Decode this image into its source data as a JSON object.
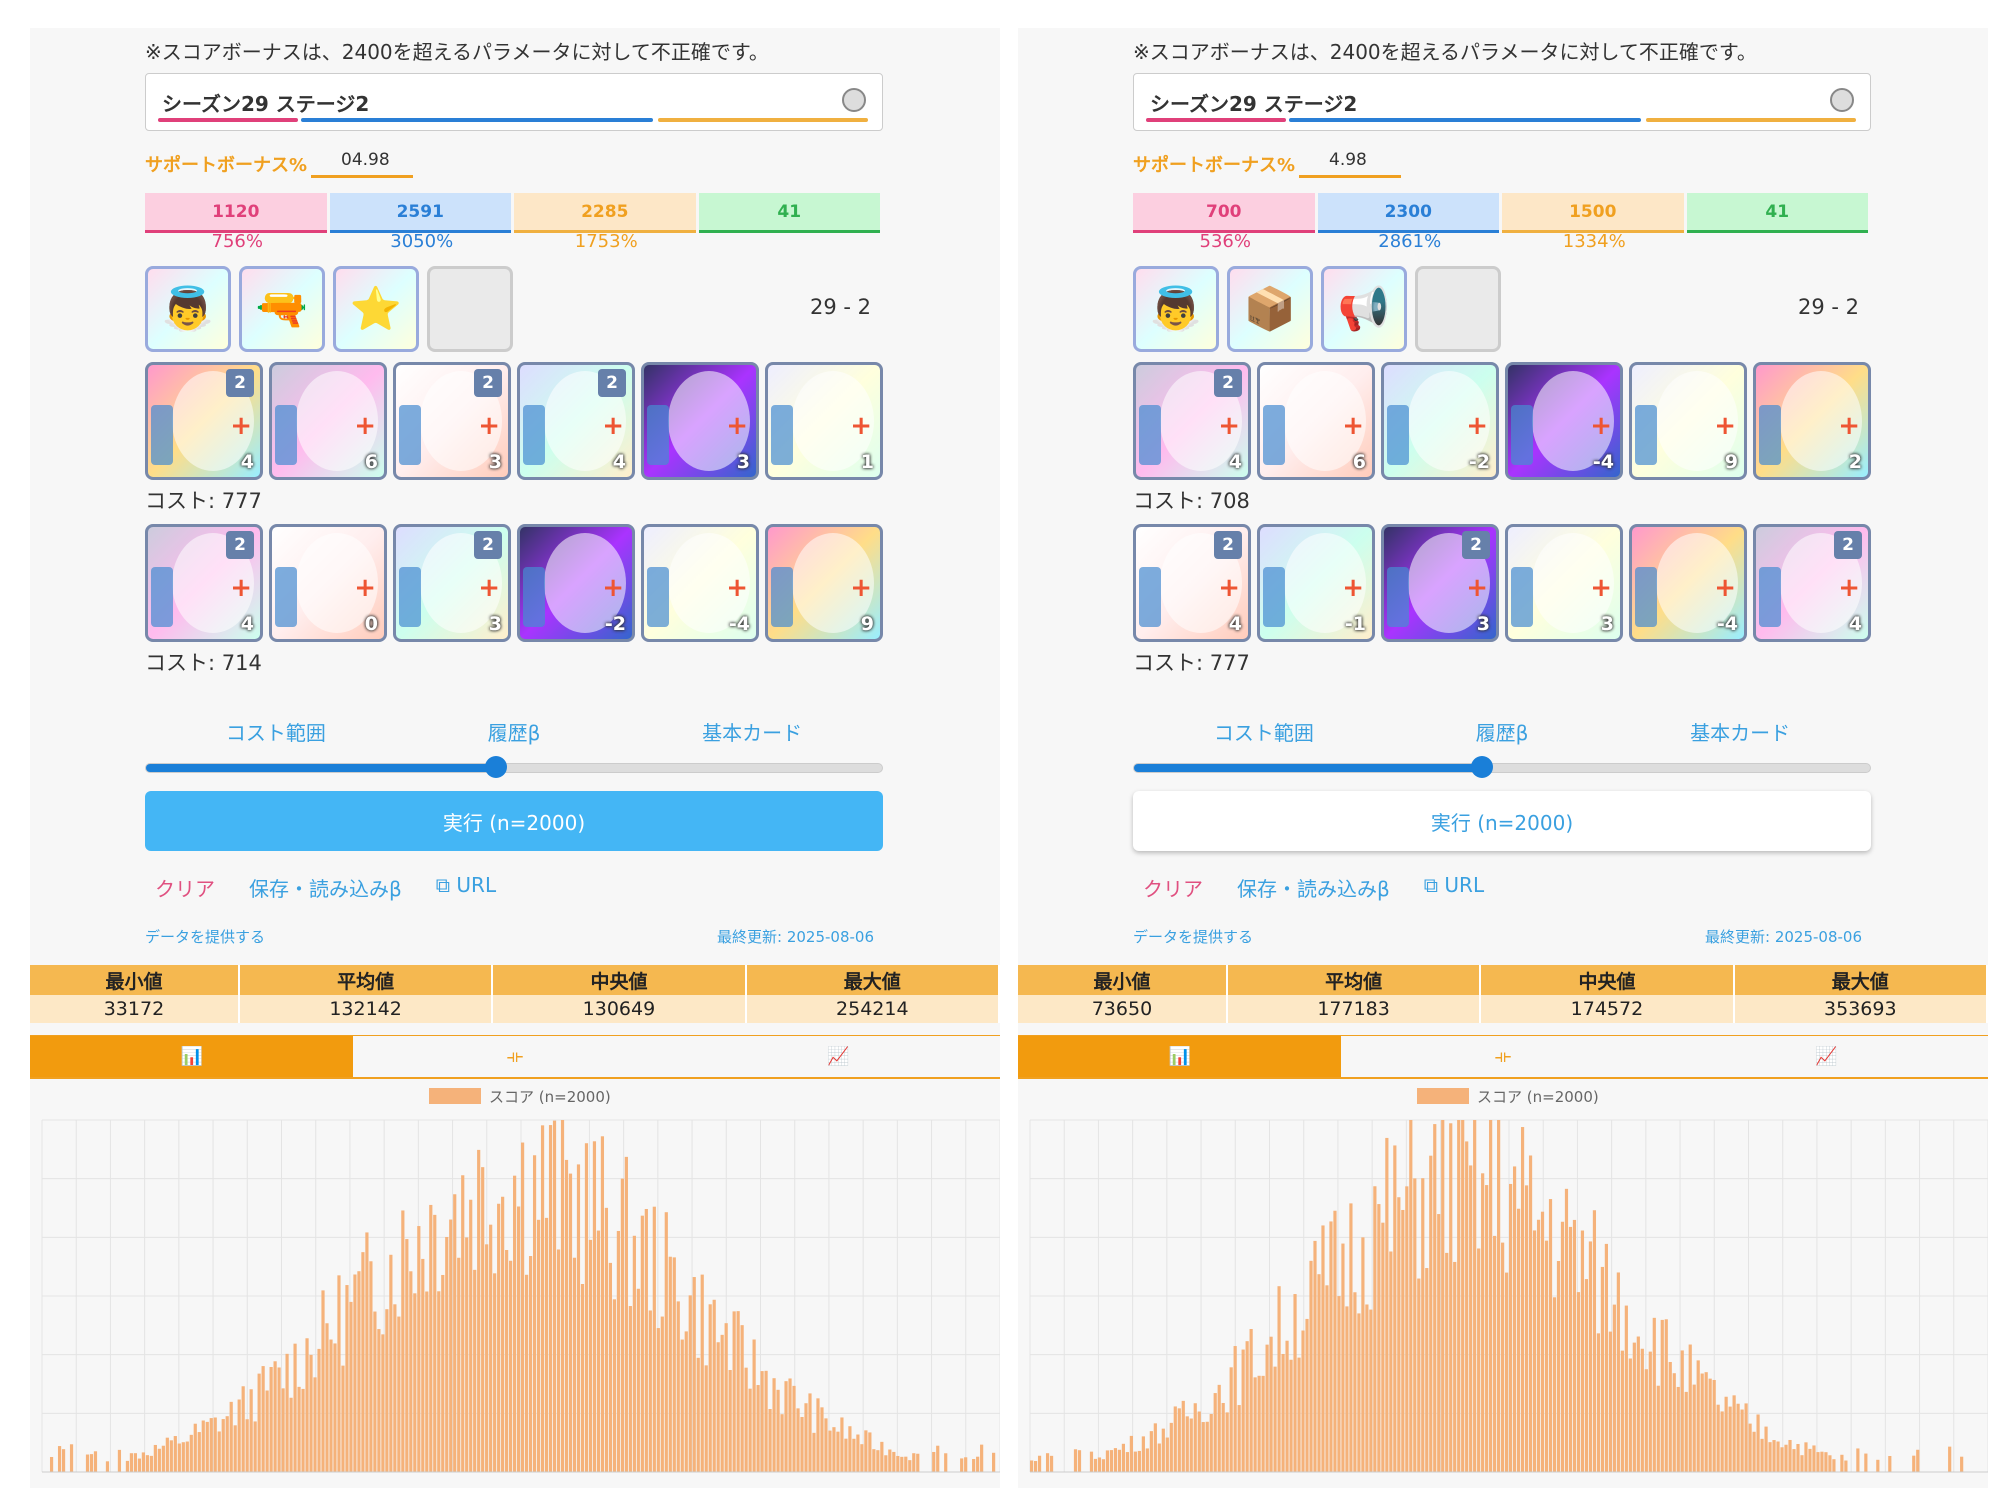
{
  "panels": [
    {
      "note": "※スコアボーナスは、2400を超えるパラメータに対して不正確です。",
      "stage": "シーズン29 ステージ2",
      "support_label": "サポートボーナス%",
      "support_value": "04.98",
      "params": [
        {
          "value": "1120",
          "pct": "756%",
          "bg": "#fccfe0",
          "fg": "#e0407a",
          "line": "#e0407a"
        },
        {
          "value": "2591",
          "pct": "3050%",
          "bg": "#cce2fb",
          "fg": "#2a7fd6",
          "line": "#2a7fd6"
        },
        {
          "value": "2285",
          "pct": "1753%",
          "bg": "#fde7c7",
          "fg": "#f0a020",
          "line": "#f0b040"
        },
        {
          "value": "41",
          "pct": "",
          "bg": "#c7f7d2",
          "fg": "#30b050",
          "line": "#30b050"
        }
      ],
      "accessories": [
        {
          "icon": "👼"
        },
        {
          "icon": "🔫"
        },
        {
          "icon": "⭐"
        },
        {
          "icon": ""
        }
      ],
      "stage_code": "29 - 2",
      "deck1": [
        {
          "lvl": "2",
          "val": "4"
        },
        {
          "lvl": "",
          "val": "6"
        },
        {
          "lvl": "2",
          "val": "3"
        },
        {
          "lvl": "2",
          "val": "4"
        },
        {
          "lvl": "",
          "val": "3"
        },
        {
          "lvl": "",
          "val": "1"
        }
      ],
      "cost1": "コスト: 777",
      "deck2": [
        {
          "lvl": "2",
          "val": "4"
        },
        {
          "lvl": "",
          "val": "0"
        },
        {
          "lvl": "2",
          "val": "3"
        },
        {
          "lvl": "",
          "val": "-2"
        },
        {
          "lvl": "",
          "val": "-4"
        },
        {
          "lvl": "",
          "val": "9"
        }
      ],
      "cost2": "コスト: 714",
      "links": [
        "コスト範囲",
        "履歴β",
        "基本カード"
      ],
      "run": "実行 (n=2000)",
      "clear": "クリア",
      "save": "保存・読み込みβ",
      "url": "⧉ URL",
      "provide": "データを提供する",
      "updated": "最終更新: 2025-08-06",
      "stats_headers": [
        "最小値",
        "平均値",
        "中央値",
        "最大値"
      ],
      "stats_values": [
        "33172",
        "132142",
        "130649",
        "254214"
      ],
      "tabs": [
        "📊",
        "⟛",
        "📈"
      ],
      "legend": "スコア (n=2000)"
    },
    {
      "note": "※スコアボーナスは、2400を超えるパラメータに対して不正確です。",
      "stage": "シーズン29 ステージ2",
      "support_label": "サポートボーナス%",
      "support_value": "4.98",
      "params": [
        {
          "value": "700",
          "pct": "536%",
          "bg": "#fccfe0",
          "fg": "#e0407a",
          "line": "#e0407a"
        },
        {
          "value": "2300",
          "pct": "2861%",
          "bg": "#cce2fb",
          "fg": "#2a7fd6",
          "line": "#2a7fd6"
        },
        {
          "value": "1500",
          "pct": "1334%",
          "bg": "#fde7c7",
          "fg": "#f0a020",
          "line": "#f0b040"
        },
        {
          "value": "41",
          "pct": "",
          "bg": "#c7f7d2",
          "fg": "#30b050",
          "line": "#30b050"
        }
      ],
      "accessories": [
        {
          "icon": "👼"
        },
        {
          "icon": "📦"
        },
        {
          "icon": "📢"
        },
        {
          "icon": ""
        }
      ],
      "stage_code": "29 - 2",
      "deck1": [
        {
          "lvl": "2",
          "val": "4"
        },
        {
          "lvl": "",
          "val": "6"
        },
        {
          "lvl": "",
          "val": "-2"
        },
        {
          "lvl": "",
          "val": "-4"
        },
        {
          "lvl": "",
          "val": "9"
        },
        {
          "lvl": "",
          "val": "2"
        }
      ],
      "cost1": "コスト: 708",
      "deck2": [
        {
          "lvl": "2",
          "val": "4"
        },
        {
          "lvl": "",
          "val": "-1"
        },
        {
          "lvl": "2",
          "val": "3"
        },
        {
          "lvl": "",
          "val": "3"
        },
        {
          "lvl": "",
          "val": "-4"
        },
        {
          "lvl": "2",
          "val": "4"
        }
      ],
      "cost2": "コスト: 777",
      "links": [
        "コスト範囲",
        "履歴β",
        "基本カード"
      ],
      "run": "実行 (n=2000)",
      "clear": "クリア",
      "save": "保存・読み込みβ",
      "url": "⧉ URL",
      "provide": "データを提供する",
      "updated": "最終更新: 2025-08-06",
      "stats_headers": [
        "最小値",
        "平均値",
        "中央値",
        "最大値"
      ],
      "stats_values": [
        "73650",
        "177183",
        "174572",
        "353693"
      ],
      "tabs": [
        "📊",
        "⟛",
        "📈"
      ],
      "legend": "スコア (n=2000)"
    }
  ],
  "chart_data": [
    {
      "type": "bar",
      "legend": "スコア (n=2000)",
      "bins": 240,
      "peak_fraction": 0.5,
      "spread": 0.17,
      "color": "#f5b27a"
    },
    {
      "type": "bar",
      "legend": "スコア (n=2000)",
      "bins": 240,
      "peak_fraction": 0.45,
      "spread": 0.16,
      "color": "#f5b27a"
    }
  ]
}
